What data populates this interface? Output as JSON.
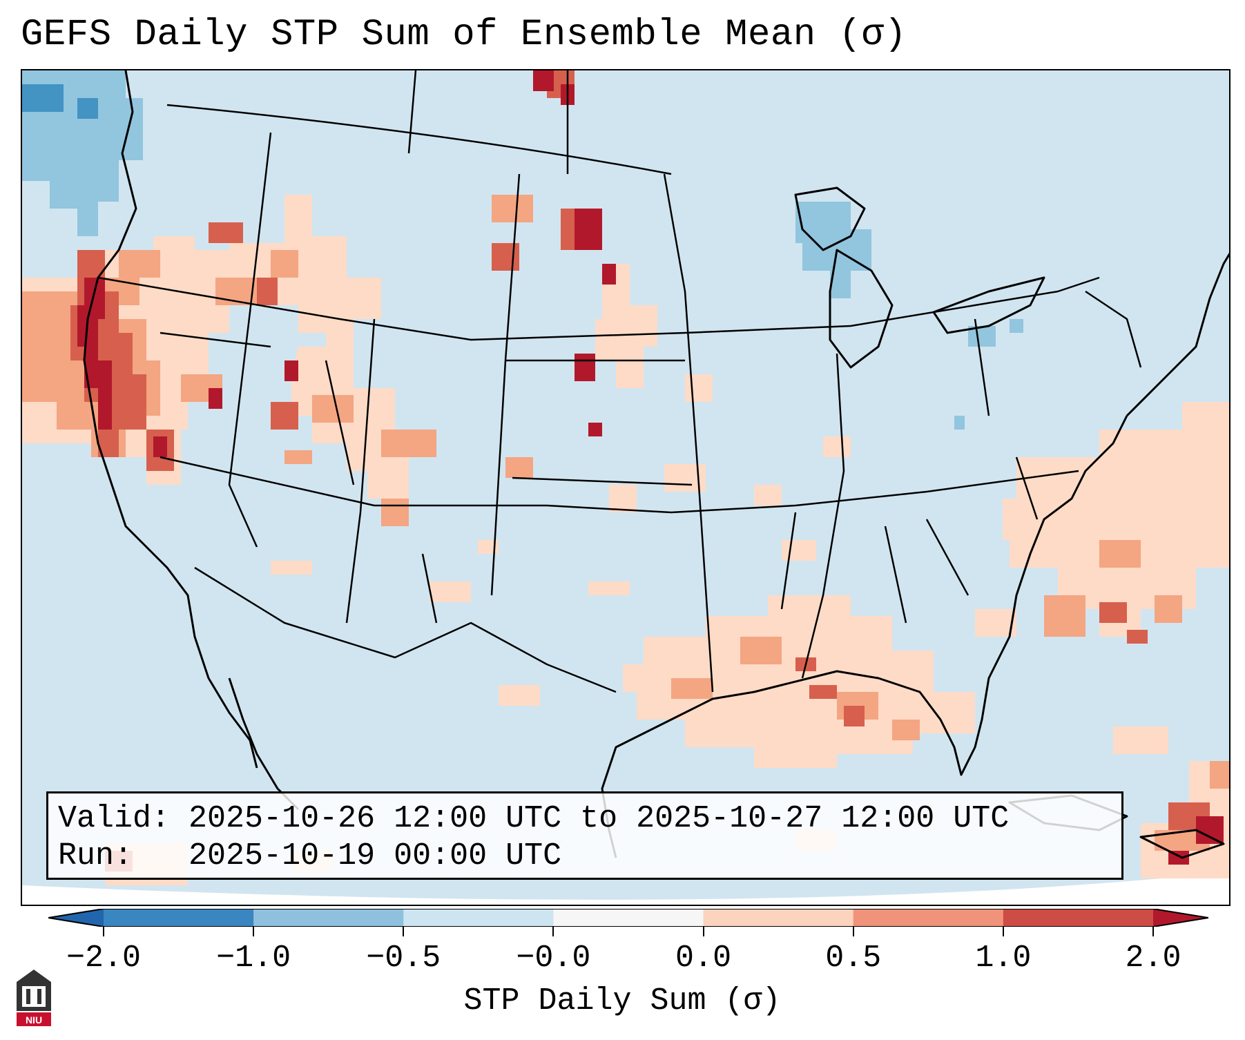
{
  "title": "GEFS Daily STP Sum of Ensemble Mean (σ)",
  "info": {
    "valid_label": "Valid:",
    "valid_range": "2025-10-26 12:00 UTC to 2025-10-27 12:00 UTC",
    "run_label": "Run:",
    "run_time": "2025-10-19 00:00 UTC"
  },
  "colorbar": {
    "label": "STP Daily Sum (σ)",
    "ticks": [
      "−2.0",
      "−1.0",
      "−0.5",
      "−0.0",
      "0.0",
      "0.5",
      "1.0",
      "2.0"
    ],
    "colors": [
      "#3a86c0",
      "#8fc1de",
      "#cde4f1",
      "#f6f6f6",
      "#fcd3bd",
      "#f0937a",
      "#cd4c45"
    ],
    "under_color": "#2166ac",
    "over_color": "#b2182b"
  },
  "map": {
    "projection": "Lambert Conformal, CONUS",
    "background_color": "#d1e5f0"
  },
  "logo": {
    "text": "NIU"
  },
  "colors": {
    "neg_strong": "#4393c3",
    "neg_light": "#92c5de",
    "pos_light": "#fddbc7",
    "pos_mid": "#f4a582",
    "pos_high": "#d6604d",
    "pos_max": "#b2182b"
  }
}
